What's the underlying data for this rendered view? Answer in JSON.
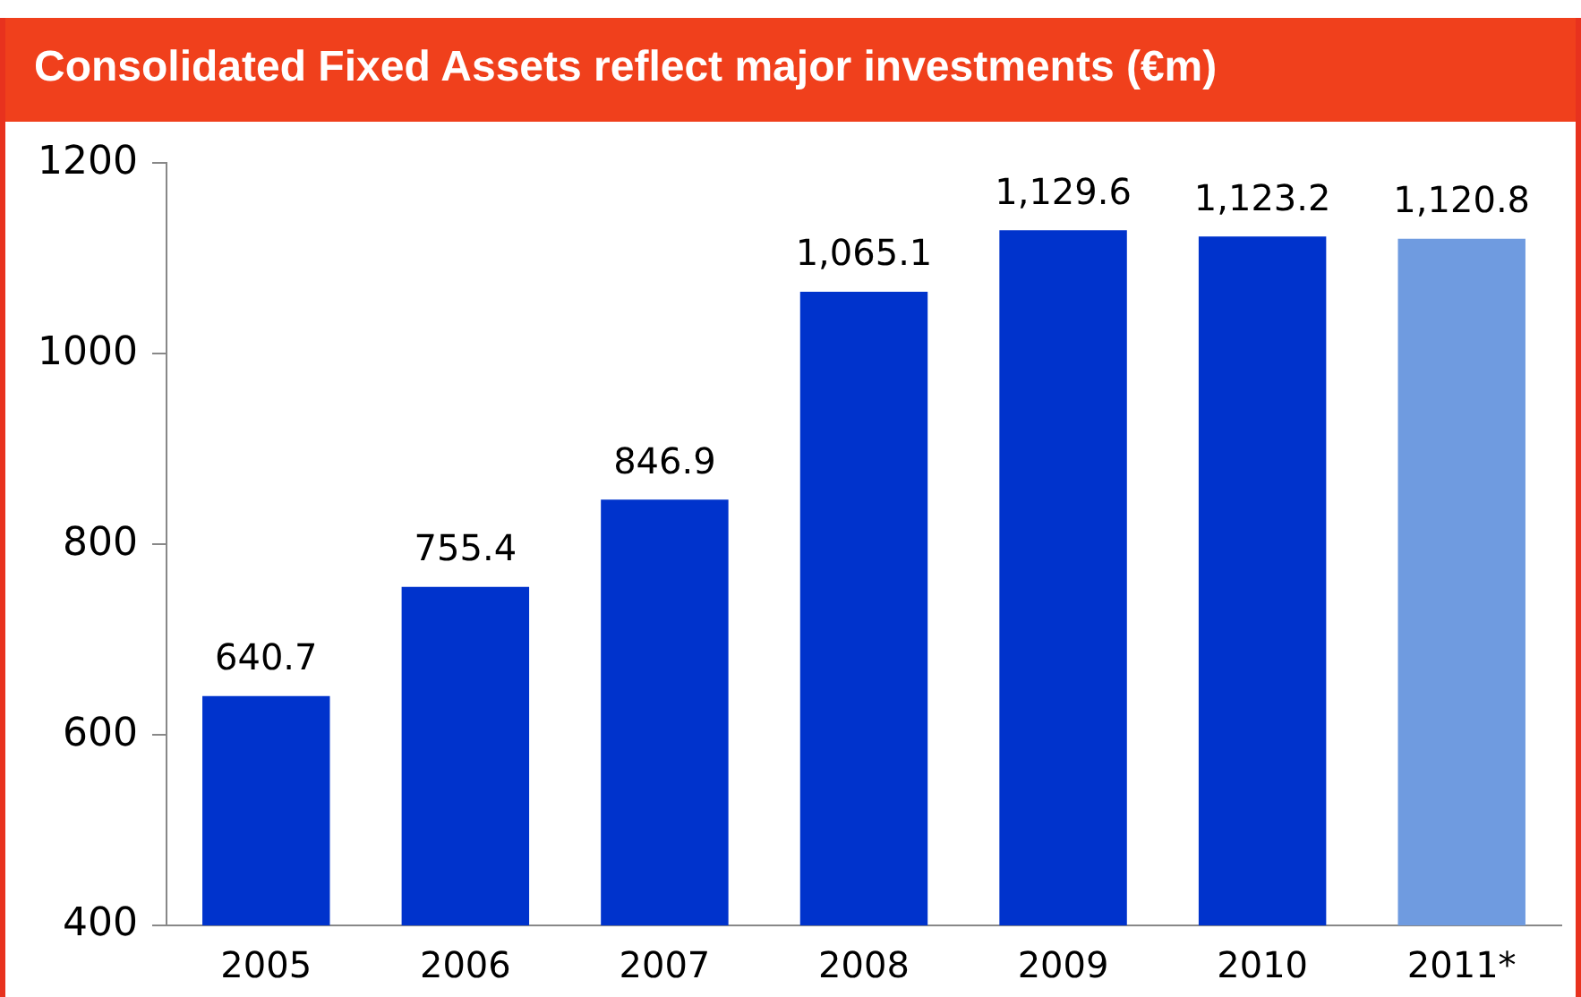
{
  "chart_data": {
    "type": "bar",
    "title": "Consolidated Fixed Assets reflect major investments (€m)",
    "categories": [
      "2005",
      "2006",
      "2007",
      "2008",
      "2009",
      "2010",
      "2011*"
    ],
    "values": [
      640.7,
      755.4,
      846.9,
      1065.1,
      1129.6,
      1123.2,
      1120.8
    ],
    "colors": [
      "#0033cc",
      "#0033cc",
      "#0033cc",
      "#0033cc",
      "#0033cc",
      "#0033cc",
      "#6f9be0"
    ],
    "value_labels": [
      "640.7",
      "755.4",
      "846.9",
      "1,065.1",
      "1,129.6",
      "1,123.2",
      "1,120.8"
    ],
    "ylim": [
      400,
      1200
    ],
    "yticks": [
      400,
      600,
      800,
      1000,
      1200
    ],
    "grid": false,
    "legend": false
  }
}
